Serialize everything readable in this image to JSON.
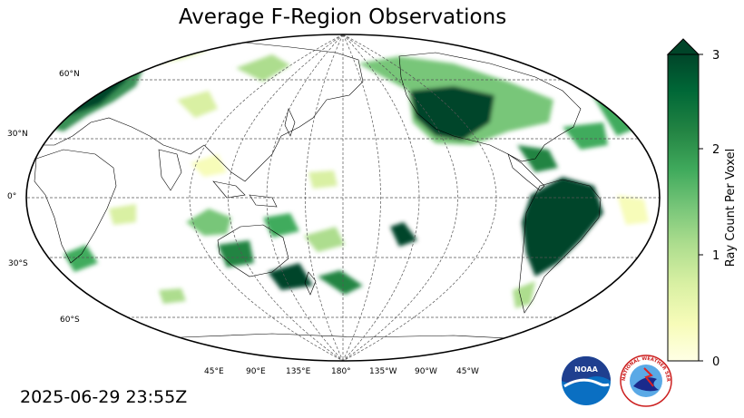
{
  "title": "Average F-Region Observations",
  "timestamp": "2025-06-29 23:55Z",
  "lat_labels": [
    "60°N",
    "30°N",
    "0°",
    "30°S",
    "60°S"
  ],
  "lon_labels": [
    "45°E",
    "90°E",
    "135°E",
    "180°",
    "135°W",
    "90°W",
    "45°W"
  ],
  "colorbar": {
    "label": "Ray Count Per Voxel",
    "ticks": [
      "0",
      "1",
      "2",
      "3"
    ],
    "min": 0,
    "max": 3,
    "extend": "max",
    "colors": [
      "#ffffe5",
      "#f7fcb9",
      "#d9f0a3",
      "#addd8e",
      "#78c679",
      "#41ab5d",
      "#238443",
      "#006837",
      "#004529"
    ]
  },
  "logos": {
    "noaa": "NOAA",
    "nws": "NATIONAL WEATHER SERVICE"
  }
}
